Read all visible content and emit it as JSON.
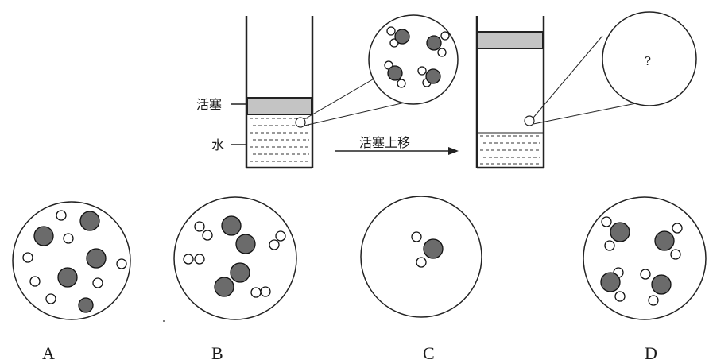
{
  "labels": {
    "piston": "活塞",
    "water": "水",
    "arrow": "活塞上移",
    "question": "?"
  },
  "options": [
    "A",
    "B",
    "C",
    "D"
  ],
  "colors": {
    "oxygen": "#6b6b6b",
    "hydrogen": "#ffffff",
    "piston": "#c4c4c4",
    "outline": "#222222"
  }
}
